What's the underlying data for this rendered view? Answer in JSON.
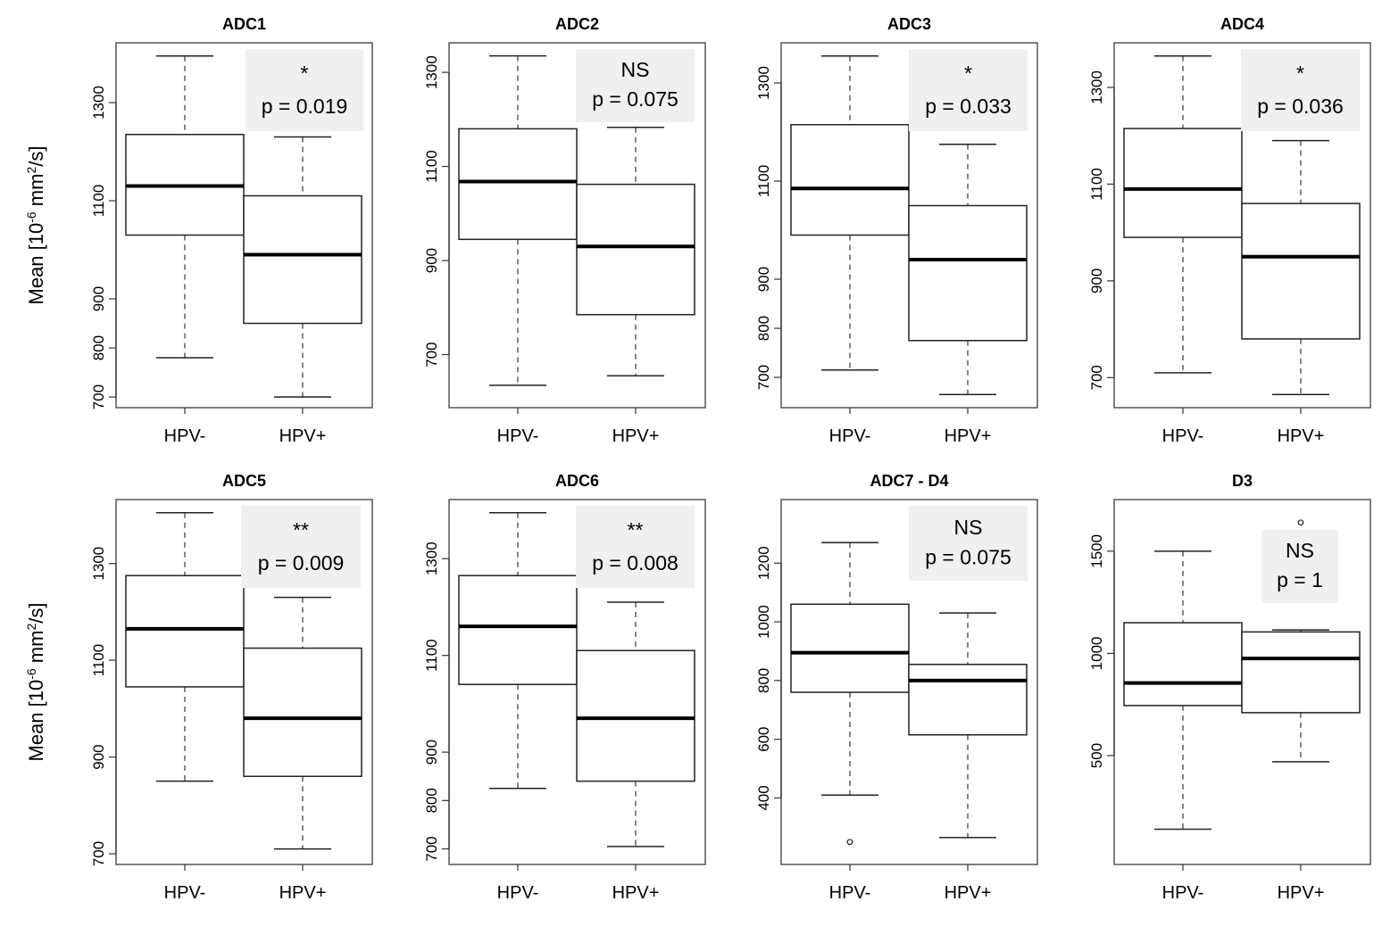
{
  "y_axis_label": {
    "prefix": "Mean [10",
    "exponent": "-6",
    "suffix": " mm",
    "unit_power": "2",
    "unit_tail": "/s]"
  },
  "chart_data": [
    {
      "type": "box",
      "title": "ADC1",
      "ylim": [
        700,
        1400
      ],
      "yticks": [
        700,
        800,
        900,
        1100,
        1300
      ],
      "categories": [
        "HPV-",
        "HPV+"
      ],
      "boxes": [
        {
          "min": 780,
          "q1": 1030,
          "median": 1130,
          "q3": 1235,
          "max": 1395,
          "outliers": []
        },
        {
          "min": 700,
          "q1": 850,
          "median": 990,
          "q3": 1110,
          "max": 1230,
          "outliers": []
        }
      ],
      "annotation": {
        "significance": "*",
        "p_value": "p = 0.019"
      }
    },
    {
      "type": "box",
      "title": "ADC2",
      "ylim": [
        610,
        1340
      ],
      "yticks": [
        700,
        900,
        1100,
        1300
      ],
      "categories": [
        "HPV-",
        "HPV+"
      ],
      "boxes": [
        {
          "min": 635,
          "q1": 945,
          "median": 1068,
          "q3": 1180,
          "max": 1335,
          "outliers": []
        },
        {
          "min": 655,
          "q1": 785,
          "median": 930,
          "q3": 1062,
          "max": 1183,
          "outliers": []
        }
      ],
      "annotation": {
        "significance": "NS",
        "p_value": "p = 0.075"
      }
    },
    {
      "type": "box",
      "title": "ADC3",
      "ylim": [
        660,
        1360
      ],
      "yticks": [
        700,
        800,
        900,
        1100,
        1300
      ],
      "categories": [
        "HPV-",
        "HPV+"
      ],
      "boxes": [
        {
          "min": 715,
          "q1": 990,
          "median": 1085,
          "q3": 1215,
          "max": 1355,
          "outliers": []
        },
        {
          "min": 665,
          "q1": 775,
          "median": 940,
          "q3": 1050,
          "max": 1175,
          "outliers": []
        }
      ],
      "annotation": {
        "significance": "*",
        "p_value": "p = 0.033"
      }
    },
    {
      "type": "box",
      "title": "ADC4",
      "ylim": [
        660,
        1370
      ],
      "yticks": [
        700,
        900,
        1100,
        1300
      ],
      "categories": [
        "HPV-",
        "HPV+"
      ],
      "boxes": [
        {
          "min": 710,
          "q1": 990,
          "median": 1090,
          "q3": 1215,
          "max": 1365,
          "outliers": []
        },
        {
          "min": 665,
          "q1": 780,
          "median": 950,
          "q3": 1060,
          "max": 1190,
          "outliers": []
        }
      ],
      "annotation": {
        "significance": "*",
        "p_value": "p = 0.036"
      }
    },
    {
      "type": "box",
      "title": "ADC5",
      "ylim": [
        700,
        1410
      ],
      "yticks": [
        700,
        900,
        1100,
        1300
      ],
      "categories": [
        "HPV-",
        "HPV+"
      ],
      "boxes": [
        {
          "min": 850,
          "q1": 1045,
          "median": 1165,
          "q3": 1275,
          "max": 1405,
          "outliers": []
        },
        {
          "min": 710,
          "q1": 860,
          "median": 980,
          "q3": 1125,
          "max": 1230,
          "outliers": []
        }
      ],
      "annotation": {
        "significance": "**",
        "p_value": "p = 0.009"
      }
    },
    {
      "type": "box",
      "title": "ADC6",
      "ylim": [
        690,
        1400
      ],
      "yticks": [
        700,
        800,
        900,
        1100,
        1300
      ],
      "categories": [
        "HPV-",
        "HPV+"
      ],
      "boxes": [
        {
          "min": 825,
          "q1": 1040,
          "median": 1160,
          "q3": 1265,
          "max": 1395,
          "outliers": []
        },
        {
          "min": 705,
          "q1": 840,
          "median": 970,
          "q3": 1110,
          "max": 1210,
          "outliers": []
        }
      ],
      "annotation": {
        "significance": "**",
        "p_value": "p = 0.008"
      }
    },
    {
      "type": "box",
      "title": "ADC7 - D4",
      "ylim": [
        210,
        1380
      ],
      "yticks": [
        400,
        600,
        800,
        1000,
        1200
      ],
      "categories": [
        "HPV-",
        "HPV+"
      ],
      "boxes": [
        {
          "min": 410,
          "q1": 760,
          "median": 895,
          "q3": 1060,
          "max": 1270,
          "outliers": [
            250
          ]
        },
        {
          "min": 265,
          "q1": 615,
          "median": 800,
          "q3": 855,
          "max": 1030,
          "outliers": []
        }
      ],
      "annotation": {
        "significance": "NS",
        "p_value": "p = 0.075"
      }
    },
    {
      "type": "box",
      "title": "D3",
      "ylim": [
        20,
        1700
      ],
      "yticks": [
        500,
        1000,
        1500
      ],
      "categories": [
        "HPV-",
        "HPV+"
      ],
      "boxes": [
        {
          "min": 140,
          "q1": 745,
          "median": 855,
          "q3": 1150,
          "max": 1500,
          "outliers": []
        },
        {
          "min": 470,
          "q1": 710,
          "median": 975,
          "q3": 1105,
          "max": 1115,
          "outliers": [
            1640
          ]
        }
      ],
      "annotation": {
        "significance": "NS",
        "p_value": "p = 1"
      }
    }
  ]
}
